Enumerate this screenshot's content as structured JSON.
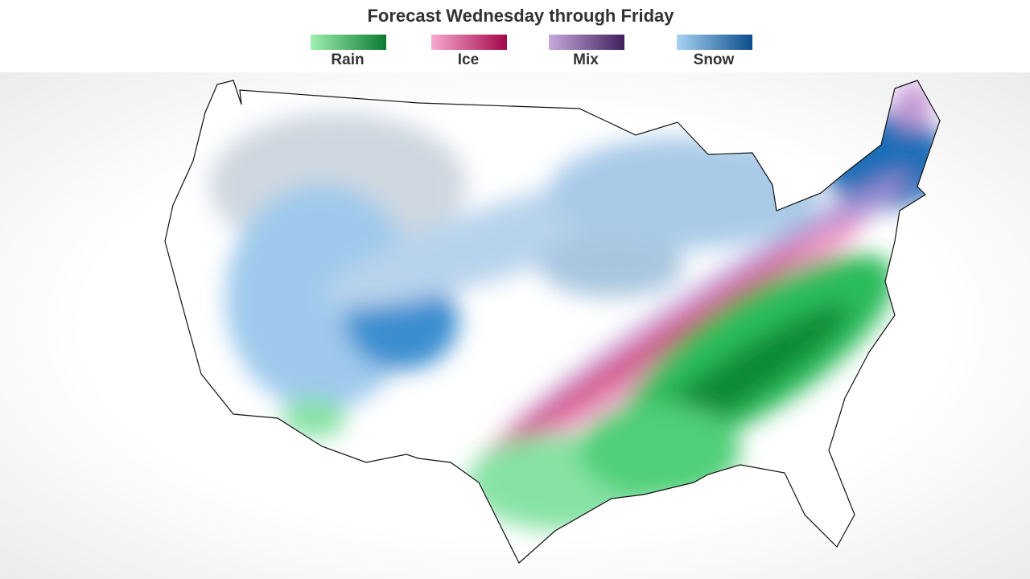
{
  "title": "Forecast Wednesday through Friday",
  "legend": [
    {
      "label": "Rain",
      "colors": [
        "#9ef0b0",
        "#0b7a30"
      ]
    },
    {
      "label": "Ice",
      "colors": [
        "#f6a9cf",
        "#a3064a"
      ]
    },
    {
      "label": "Mix",
      "colors": [
        "#c7a9dd",
        "#3f1f5c"
      ]
    },
    {
      "label": "Snow",
      "colors": [
        "#a8d2f2",
        "#0a4d8c"
      ]
    }
  ]
}
